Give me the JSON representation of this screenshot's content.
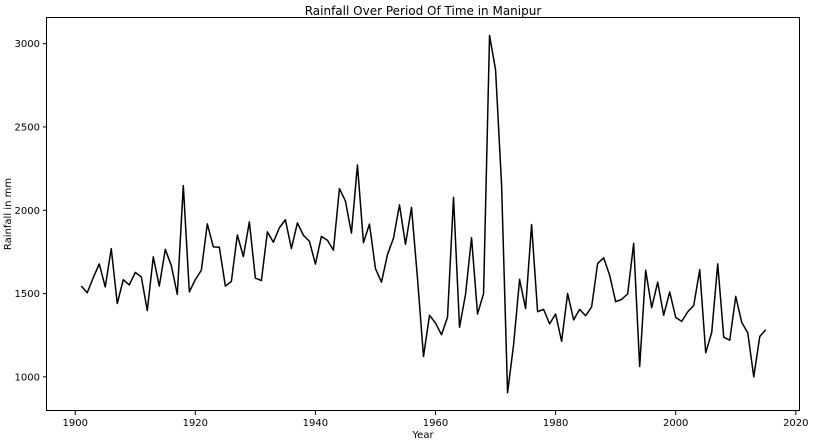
{
  "chart_data": {
    "type": "line",
    "title": "Rainfall Over Period Of Time in Manipur",
    "xlabel": "Year",
    "ylabel": "Rainfall in mm",
    "xlim": [
      1895.3,
      2020.7
    ],
    "ylim": [
      795,
      3154
    ],
    "x_ticks": [
      1900,
      1920,
      1940,
      1960,
      1980,
      2000,
      2020
    ],
    "y_ticks": [
      1000,
      1500,
      2000,
      2500,
      3000
    ],
    "grid": false,
    "line_color": "#000000",
    "series": [
      {
        "x": [
          1901,
          1902,
          1903,
          1904,
          1905,
          1906,
          1907,
          1908,
          1909,
          1910,
          1911,
          1912,
          1913,
          1914,
          1915,
          1916,
          1917,
          1918,
          1919,
          1920,
          1921,
          1922,
          1923,
          1924,
          1925,
          1926,
          1927,
          1928,
          1929,
          1930,
          1931,
          1932,
          1933,
          1934,
          1935,
          1936,
          1937,
          1938,
          1939,
          1940,
          1941,
          1942,
          1943,
          1944,
          1945,
          1946,
          1947,
          1948,
          1949,
          1950,
          1951,
          1952,
          1953,
          1954,
          1955,
          1956,
          1957,
          1958,
          1959,
          1960,
          1961,
          1962,
          1963,
          1964,
          1965,
          1966,
          1967,
          1968,
          1969,
          1970,
          1971,
          1972,
          1973,
          1974,
          1975,
          1976,
          1977,
          1978,
          1979,
          1980,
          1981,
          1982,
          1983,
          1984,
          1985,
          1986,
          1987,
          1988,
          1989,
          1990,
          1991,
          1992,
          1993,
          1994,
          1995,
          1996,
          1997,
          1998,
          1999,
          2000,
          2001,
          2002,
          2003,
          2004,
          2005,
          2006,
          2007,
          2008,
          2009,
          2010,
          2011,
          2012,
          2013,
          2014,
          2015
        ],
        "y": [
          1545,
          1505,
          1595,
          1678,
          1540,
          1770,
          1440,
          1583,
          1552,
          1627,
          1600,
          1398,
          1720,
          1545,
          1765,
          1668,
          1495,
          2148,
          1510,
          1583,
          1640,
          1918,
          1780,
          1778,
          1545,
          1572,
          1852,
          1722,
          1930,
          1593,
          1578,
          1870,
          1808,
          1895,
          1943,
          1770,
          1924,
          1850,
          1814,
          1677,
          1843,
          1820,
          1760,
          2130,
          2055,
          1863,
          2272,
          1805,
          1917,
          1650,
          1568,
          1734,
          1832,
          2032,
          1795,
          2017,
          1591,
          1122,
          1370,
          1323,
          1253,
          1358,
          2077,
          1298,
          1495,
          1835,
          1377,
          1500,
          3049,
          2843,
          2155,
          905,
          1191,
          1585,
          1410,
          1914,
          1391,
          1405,
          1318,
          1377,
          1213,
          1500,
          1342,
          1405,
          1367,
          1420,
          1680,
          1715,
          1610,
          1451,
          1465,
          1498,
          1801,
          1062,
          1640,
          1415,
          1568,
          1370,
          1510,
          1357,
          1333,
          1390,
          1428,
          1643,
          1145,
          1267,
          1678,
          1238,
          1220,
          1483,
          1326,
          1265,
          1000,
          1242,
          1283
        ]
      }
    ]
  }
}
